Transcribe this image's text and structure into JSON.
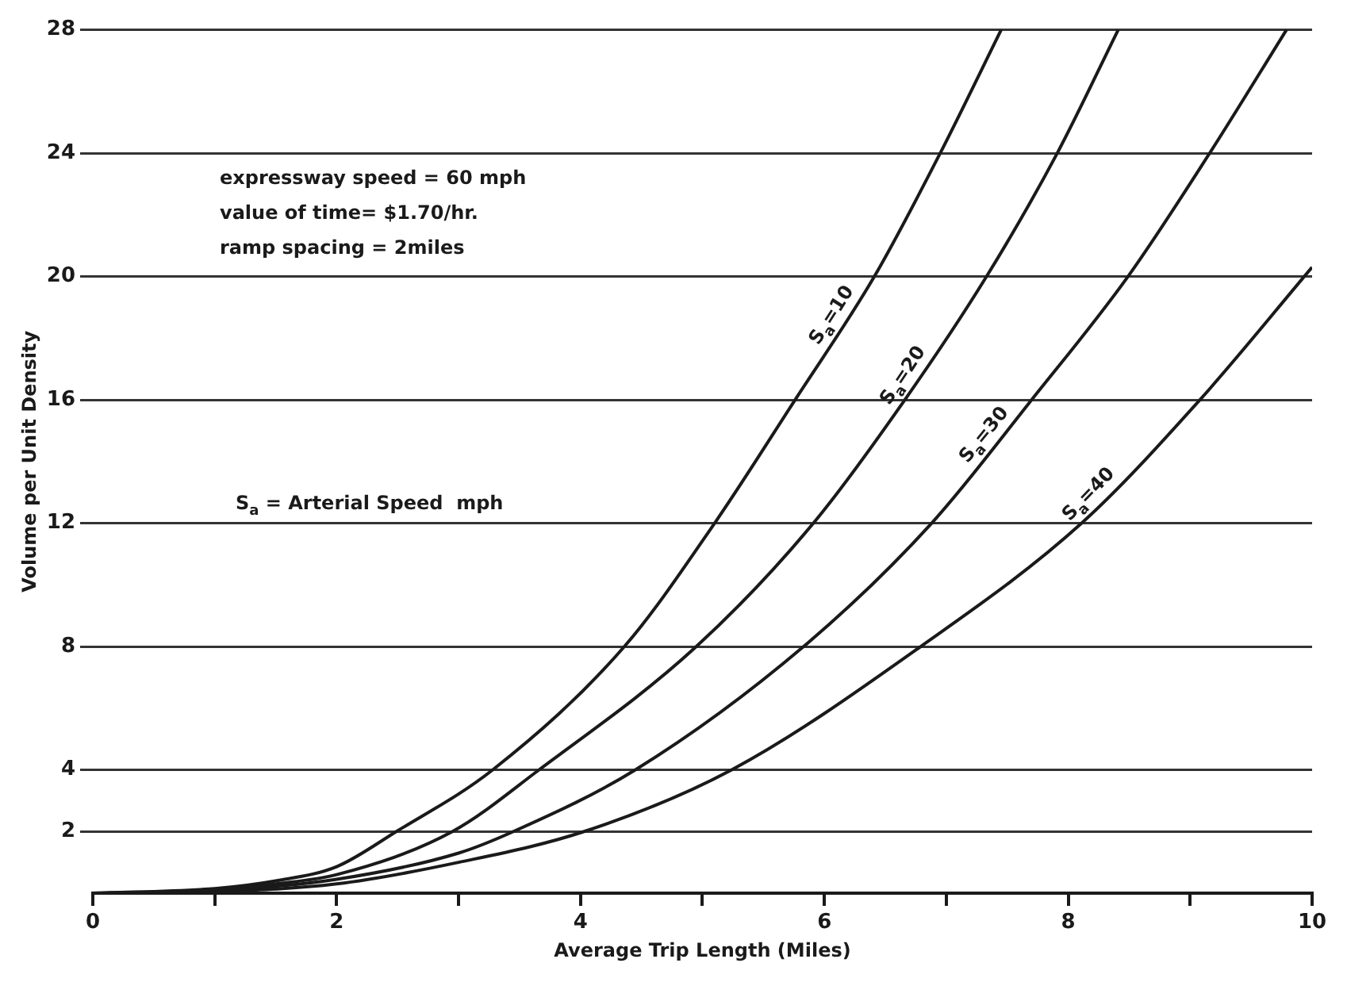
{
  "chart_data": {
    "type": "line",
    "xlabel": "Average Trip Length (Miles)",
    "ylabel": "Volume per Unit Density",
    "xlim": [
      0,
      10
    ],
    "xticks": [
      0,
      {
        "value": 1,
        "label": null
      },
      2,
      {
        "value": 3,
        "label": null
      },
      4,
      {
        "value": 5,
        "label": null
      },
      6,
      {
        "value": 7,
        "label": null
      },
      8,
      {
        "value": 9,
        "label": null
      },
      10
    ],
    "ylim": [
      0,
      28
    ],
    "yticks": [
      2,
      4,
      8,
      12,
      16,
      20,
      24,
      28
    ],
    "grid": "y",
    "legend": false,
    "marker": "none",
    "annotations": [
      "expressway speed = 60 mph",
      "value of time= $1.70/hr.",
      "ramp spacing = 2miles",
      "S$_{a}$ = Arterial Speed  mph"
    ],
    "series": [
      {
        "name": "S$_{a}$=10",
        "color": "#1a1a1a",
        "x": [
          0,
          1,
          1.5,
          2,
          2.49,
          3.28,
          4.36,
          5.1,
          5.76,
          6.41,
          6.95,
          7.45
        ],
        "values": [
          0,
          0.15,
          0.4,
          0.86,
          2,
          4,
          8,
          12,
          16,
          20,
          24,
          28
        ]
      },
      {
        "name": "S$_{a}$=20",
        "color": "#1a1a1a",
        "x": [
          0,
          1,
          1.5,
          2,
          2.95,
          3.66,
          4.95,
          5.91,
          6.66,
          7.33,
          7.91,
          8.41
        ],
        "values": [
          0,
          0.1,
          0.3,
          0.6,
          2,
          4,
          8,
          12,
          16,
          20,
          24,
          28
        ]
      },
      {
        "name": "S$_{a}$=30",
        "color": "#1a1a1a",
        "x": [
          0,
          1,
          2,
          3,
          3.45,
          4.45,
          5.83,
          6.88,
          7.7,
          8.49,
          9.16,
          9.79
        ],
        "values": [
          0,
          0.08,
          0.45,
          1.3,
          2,
          4,
          8,
          12,
          16,
          20,
          24,
          28
        ]
      },
      {
        "name": "S$_{a}$=40",
        "color": "#1a1a1a",
        "x": [
          0,
          1,
          2,
          3,
          4.03,
          5.24,
          6.79,
          8.11,
          9.08,
          10
        ],
        "values": [
          0,
          0.05,
          0.3,
          1.0,
          2,
          4,
          8,
          12,
          16,
          20.3
        ]
      }
    ]
  }
}
